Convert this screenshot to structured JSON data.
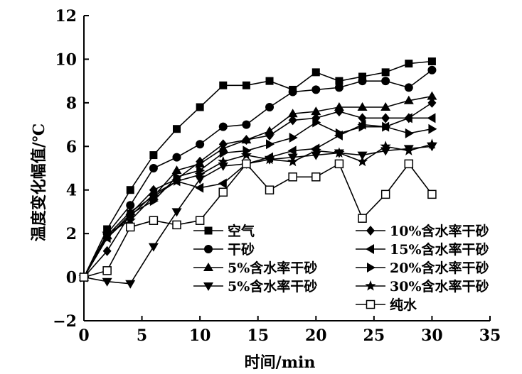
{
  "chart_data": {
    "type": "line",
    "title": "",
    "xlabel": "时间/min",
    "ylabel": "温度变化幅值/℃",
    "xlim": [
      0,
      35
    ],
    "ylim": [
      -2,
      12
    ],
    "xticks": [
      0,
      5,
      10,
      15,
      20,
      25,
      30,
      35
    ],
    "yticks": [
      -2,
      0,
      2,
      4,
      6,
      8,
      10,
      12
    ],
    "grid": false,
    "legend_position": "lower-center (two columns inside plot)",
    "series": [
      {
        "name": "空气",
        "marker": "square-filled",
        "x": [
          0,
          2,
          4,
          6,
          8,
          10,
          12,
          14,
          16,
          18,
          20,
          22,
          24,
          26,
          28,
          30
        ],
        "y": [
          0,
          2.2,
          4.0,
          5.6,
          6.8,
          7.8,
          8.8,
          8.8,
          9.0,
          8.6,
          9.4,
          9.0,
          9.2,
          9.4,
          9.8,
          9.9
        ]
      },
      {
        "name": "干砂",
        "marker": "circle-filled",
        "x": [
          0,
          2,
          4,
          6,
          8,
          10,
          12,
          14,
          16,
          18,
          20,
          22,
          24,
          26,
          28,
          30
        ],
        "y": [
          0,
          2.0,
          3.3,
          5.0,
          5.5,
          6.1,
          6.9,
          7.0,
          7.8,
          8.5,
          8.6,
          8.7,
          9.0,
          9.0,
          8.7,
          9.5
        ]
      },
      {
        "name": "5%含水率干砂",
        "marker": "triangle-up-filled",
        "x": [
          0,
          2,
          4,
          6,
          8,
          10,
          12,
          14,
          16,
          18,
          20,
          22,
          24,
          26,
          28,
          30
        ],
        "y": [
          0,
          1.9,
          3.0,
          3.7,
          4.9,
          5.2,
          5.9,
          6.3,
          6.7,
          7.5,
          7.6,
          7.8,
          7.8,
          7.8,
          8.1,
          8.3
        ]
      },
      {
        "name": "5%含水率干砂",
        "marker": "triangle-down-filled",
        "x": [
          0,
          2,
          4,
          6,
          8,
          10,
          12,
          14,
          16,
          18,
          20,
          22,
          24,
          26,
          28,
          30
        ],
        "y": [
          0,
          -0.2,
          -0.3,
          1.4,
          3.0,
          4.5,
          5.1,
          5.2,
          5.4,
          5.5,
          5.6,
          5.7,
          5.6,
          5.8,
          5.9,
          6.0
        ]
      },
      {
        "name": "10%含水率干砂",
        "marker": "diamond-filled",
        "x": [
          0,
          2,
          4,
          6,
          8,
          10,
          12,
          14,
          16,
          18,
          20,
          22,
          24,
          26,
          28,
          30
        ],
        "y": [
          0,
          1.2,
          2.9,
          4.0,
          4.5,
          5.3,
          6.1,
          6.3,
          6.5,
          7.2,
          7.3,
          7.6,
          7.3,
          7.3,
          7.3,
          8.0
        ]
      },
      {
        "name": "15%含水率干砂",
        "marker": "triangle-left-filled",
        "x": [
          0,
          2,
          4,
          6,
          8,
          10,
          12,
          14,
          16,
          18,
          20,
          22,
          24,
          26,
          28,
          30
        ],
        "y": [
          0,
          1.8,
          2.8,
          3.8,
          4.4,
          4.1,
          4.3,
          5.2,
          5.5,
          5.8,
          5.9,
          6.5,
          7.0,
          6.9,
          7.3,
          7.3
        ]
      },
      {
        "name": "20%含水率干砂",
        "marker": "triangle-right-filled",
        "x": [
          0,
          2,
          4,
          6,
          8,
          10,
          12,
          14,
          16,
          18,
          20,
          22,
          24,
          26,
          28,
          30
        ],
        "y": [
          0,
          1.8,
          2.9,
          3.5,
          4.6,
          4.9,
          5.7,
          5.8,
          6.1,
          6.4,
          7.1,
          6.6,
          6.9,
          6.9,
          6.6,
          6.8
        ]
      },
      {
        "name": "30%含水率干砂",
        "marker": "star-filled",
        "x": [
          0,
          2,
          4,
          6,
          8,
          10,
          12,
          14,
          16,
          18,
          20,
          22,
          24,
          26,
          28,
          30
        ],
        "y": [
          0,
          2.0,
          2.6,
          3.7,
          4.4,
          4.7,
          5.3,
          5.6,
          5.4,
          5.3,
          5.8,
          5.7,
          5.3,
          6.0,
          5.8,
          6.1
        ]
      },
      {
        "name": "纯水",
        "marker": "square-open",
        "x": [
          0,
          2,
          4,
          6,
          8,
          10,
          12,
          14,
          16,
          18,
          20,
          22,
          24,
          26,
          28,
          30
        ],
        "y": [
          0,
          0.3,
          2.3,
          2.6,
          2.4,
          2.6,
          3.9,
          5.2,
          4.0,
          4.6,
          4.6,
          5.2,
          2.7,
          3.8,
          5.2,
          3.8
        ]
      }
    ]
  }
}
